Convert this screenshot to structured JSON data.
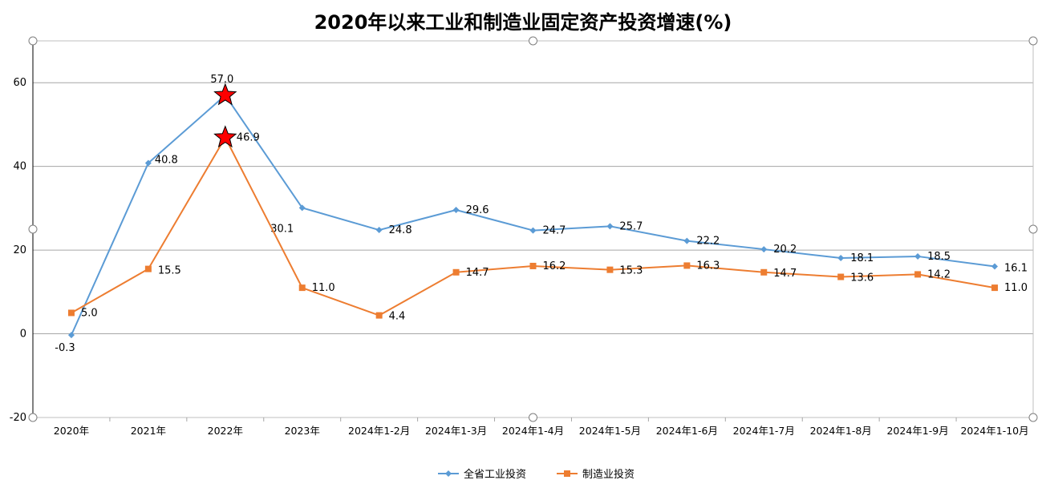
{
  "chart_data": {
    "type": "line",
    "title": "2020年以来工业和制造业固定资产投资增速(%)",
    "xlabel": "",
    "ylabel": "",
    "ylim": [
      -20,
      70
    ],
    "yticks": [
      -20,
      0,
      20,
      40,
      60
    ],
    "grid": true,
    "legend_position": "bottom",
    "categories": [
      "2020年",
      "2021年",
      "2022年",
      "2023年",
      "2024年1-2月",
      "2024年1-3月",
      "2024年1-4月",
      "2024年1-5月",
      "2024年1-6月",
      "2024年1-7月",
      "2024年1-8月",
      "2024年1-9月",
      "2024年1-10月"
    ],
    "series": [
      {
        "name": "全省工业投资",
        "color": "#5b9bd5",
        "marker": "diamond",
        "values": [
          -0.3,
          40.8,
          57.0,
          30.1,
          24.8,
          29.6,
          24.7,
          25.7,
          22.2,
          20.2,
          18.1,
          18.5,
          16.1
        ],
        "labels": [
          "-0.3",
          "40.8",
          "57.0",
          "30.1",
          "24.8",
          "29.6",
          "24.7",
          "25.7",
          "22.2",
          "20.2",
          "18.1",
          "18.5",
          "16.1"
        ]
      },
      {
        "name": "制造业投资",
        "color": "#ed7d31",
        "marker": "square",
        "values": [
          5.0,
          15.5,
          46.9,
          11.0,
          4.4,
          14.7,
          16.2,
          15.3,
          16.3,
          14.7,
          13.6,
          14.2,
          11.0
        ],
        "labels": [
          "5.0",
          "15.5",
          "46.9",
          "11.0",
          "4.4",
          "14.7",
          "16.2",
          "15.3",
          "16.3",
          "14.7",
          "13.6",
          "14.2",
          "11.0"
        ]
      }
    ],
    "highlight_color": "#ff0000"
  }
}
